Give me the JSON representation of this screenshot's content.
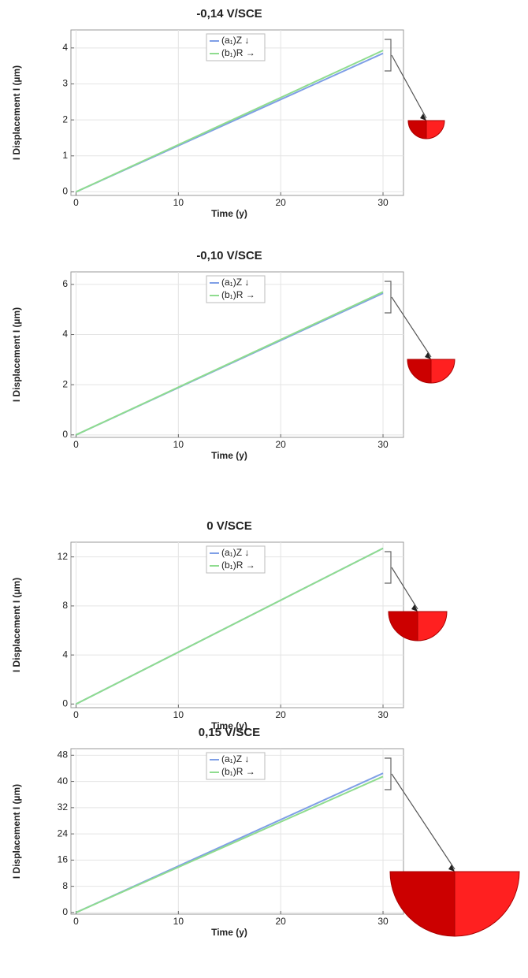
{
  "chart_data": [
    {
      "type": "line",
      "title": "-0,14 V/SCE",
      "xlabel": "Time (y)",
      "ylabel": "I Displacement I (µm)",
      "x": [
        0,
        30
      ],
      "xlim": [
        -0.5,
        32
      ],
      "xticks": [
        0,
        10,
        20,
        30
      ],
      "ylim": [
        -0.1,
        4.5
      ],
      "yticks": [
        0,
        1,
        2,
        3,
        4
      ],
      "grid": true,
      "series": [
        {
          "name": "(a₁)Z ↓",
          "color": "#7f9fe6",
          "values": [
            0,
            3.85
          ]
        },
        {
          "name": "(b₁)R →",
          "color": "#8fdc8f",
          "values": [
            0,
            3.93
          ]
        }
      ]
    },
    {
      "type": "line",
      "title": "-0,10 V/SCE",
      "xlabel": "Time (y)",
      "ylabel": "I Displacement I (µm)",
      "x": [
        0,
        30
      ],
      "xlim": [
        -0.5,
        32
      ],
      "xticks": [
        0,
        10,
        20,
        30
      ],
      "ylim": [
        -0.1,
        6.5
      ],
      "yticks": [
        0,
        2,
        4,
        6
      ],
      "grid": true,
      "series": [
        {
          "name": "(a₁)Z ↓",
          "color": "#7f9fe6",
          "values": [
            0,
            5.65
          ]
        },
        {
          "name": "(b₁)R →",
          "color": "#8fdc8f",
          "values": [
            0,
            5.7
          ]
        }
      ]
    },
    {
      "type": "line",
      "title": "0 V/SCE",
      "xlabel": "Time (y)",
      "ylabel": "I Displacement I (µm)",
      "x": [
        0,
        30
      ],
      "xlim": [
        -0.5,
        32
      ],
      "xticks": [
        0,
        10,
        20,
        30
      ],
      "ylim": [
        -0.3,
        13.2
      ],
      "yticks": [
        0,
        4,
        8,
        12
      ],
      "grid": true,
      "series": [
        {
          "name": "(a₁)Z ↓",
          "color": "#7f9fe6",
          "values": [
            0,
            12.7
          ]
        },
        {
          "name": "(b₁)R →",
          "color": "#8fdc8f",
          "values": [
            0,
            12.7
          ]
        }
      ]
    },
    {
      "type": "line",
      "title": "0,15 V/SCE",
      "xlabel": "Time (y)",
      "ylabel": "I Displacement I (µm)",
      "x": [
        0,
        30
      ],
      "xlim": [
        -0.5,
        32
      ],
      "xticks": [
        0,
        10,
        20,
        30
      ],
      "ylim": [
        -0.5,
        50
      ],
      "yticks": [
        0,
        8,
        16,
        24,
        32,
        40,
        48
      ],
      "grid": true,
      "series": [
        {
          "name": "(a₁)Z ↓",
          "color": "#7f9fe6",
          "values": [
            0,
            42.5
          ]
        },
        {
          "name": "(b₁)R →",
          "color": "#8fdc8f",
          "values": [
            0,
            41.5
          ]
        }
      ]
    }
  ]
}
